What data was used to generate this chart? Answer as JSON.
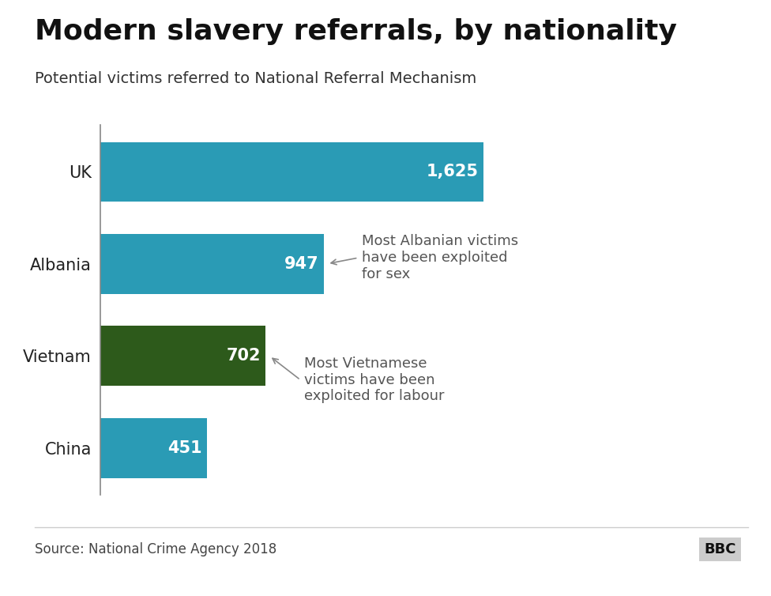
{
  "title": "Modern slavery referrals, by nationality",
  "subtitle": "Potential victims referred to National Referral Mechanism",
  "categories": [
    "China",
    "Vietnam",
    "Albania",
    "UK"
  ],
  "values": [
    451,
    702,
    947,
    1625
  ],
  "bar_colors": [
    "#2A9BB5",
    "#2D5A1B",
    "#2A9BB5",
    "#2A9BB5"
  ],
  "value_labels": [
    "451",
    "702",
    "947",
    "1,625"
  ],
  "xlim": [
    0,
    1700
  ],
  "annotation_albania": "Most Albanian victims\nhave been exploited\nfor sex",
  "annotation_vietnam": "Most Vietnamese\nvictims have been\nexploited for labour",
  "source_text": "Source: National Crime Agency 2018",
  "bbc_text": "BBC",
  "background_color": "#ffffff",
  "title_fontsize": 26,
  "subtitle_fontsize": 14,
  "label_fontsize": 15,
  "value_fontsize": 15,
  "annotation_fontsize": 13,
  "source_fontsize": 12,
  "bar_height": 0.65
}
